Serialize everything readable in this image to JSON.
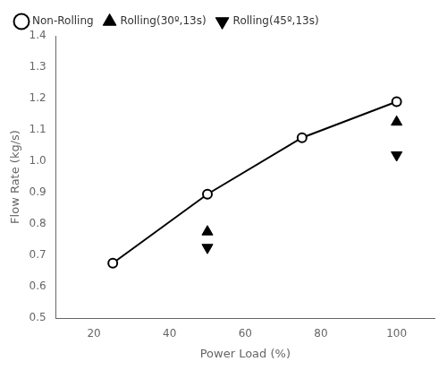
{
  "chart_data": {
    "type": "scatter",
    "xlabel": "Power Load (%)",
    "ylabel": "Flow Rate (kg/s)",
    "xlim": [
      10,
      110
    ],
    "ylim": [
      0.5,
      1.4
    ],
    "xticks": [
      20,
      40,
      60,
      80,
      100
    ],
    "yticks": [
      0.5,
      0.6,
      0.7,
      0.8,
      0.9,
      {
        "value": 1.0,
        "label": "1.0"
      },
      1.1,
      1.2,
      1.3,
      1.4
    ],
    "grid": false,
    "legend": "upper left",
    "series": [
      {
        "name": "Non-Rolling",
        "type": "line",
        "color": "#000000",
        "marker": "open-circle",
        "line_style": "solid",
        "x": [
          25,
          50,
          75,
          100
        ],
        "values": [
          0.675,
          0.895,
          1.075,
          1.19
        ]
      },
      {
        "name": "Rolling(30º,13s)",
        "type": "scatter",
        "color": "#000000",
        "marker": "triangle-up",
        "line_style": "none",
        "x": [
          50,
          100
        ],
        "values": [
          0.775,
          1.125
        ]
      },
      {
        "name": "Rolling(45º,13s)",
        "type": "scatter",
        "color": "#000000",
        "marker": "triangle-down",
        "line_style": "none",
        "x": [
          50,
          100
        ],
        "values": [
          0.725,
          1.02
        ]
      }
    ]
  }
}
